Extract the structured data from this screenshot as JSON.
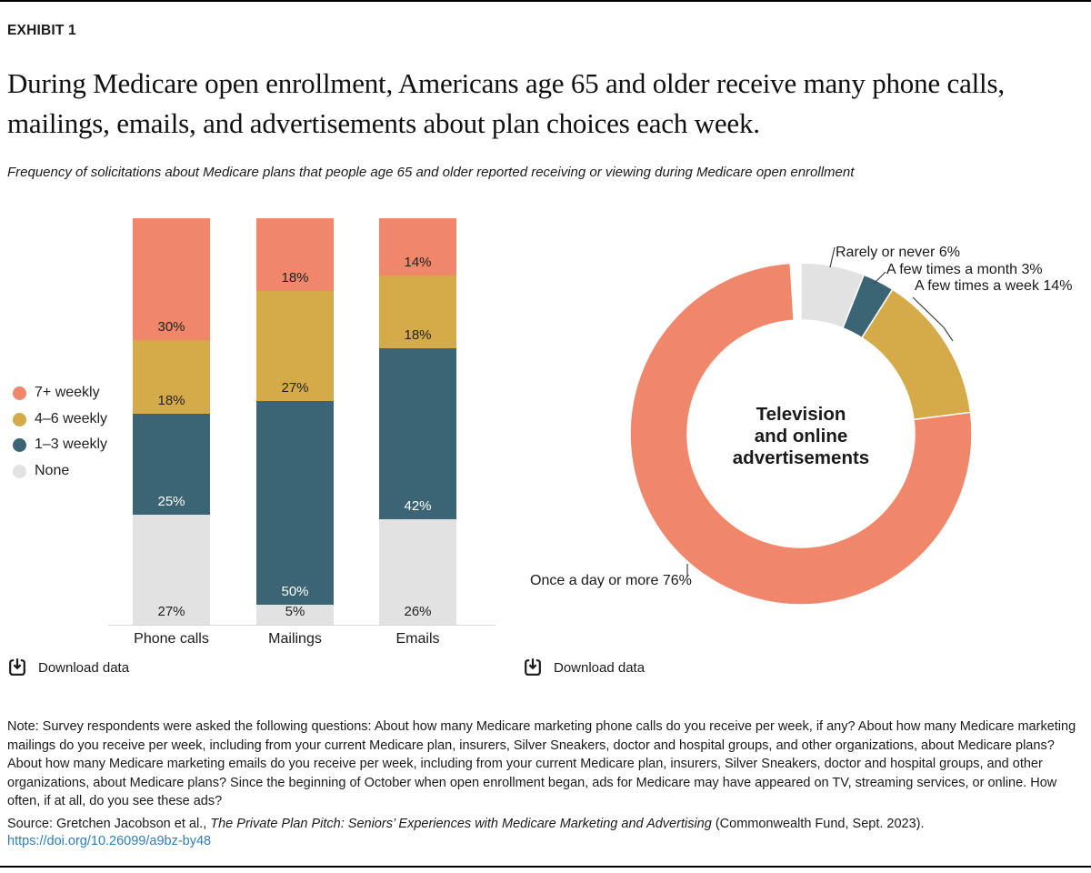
{
  "page": {
    "exhibit_label": "EXHIBIT 1",
    "title": "During Medicare open enrollment, Americans age 65 and older receive many phone calls, mailings, emails, and advertisements about plan choices each week.",
    "subtitle": "Frequency of solicitations about Medicare plans that people age 65 and older reported receiving or viewing during Medicare open enrollment"
  },
  "colors": {
    "orange": "#F0876A",
    "gold": "#D5AB49",
    "teal": "#3B6474",
    "gray": "#E2E2E2",
    "text": "#1A1A1A",
    "bar_label_dark": "#222222",
    "bar_label_light": "#FFFFFF",
    "axis": "#D8D8D8",
    "leader": "#444444",
    "link": "#2E7DBF"
  },
  "chart_data": [
    {
      "type": "bar",
      "subtype": "stacked-percent",
      "categories": [
        "Phone calls",
        "Mailings",
        "Emails"
      ],
      "series": [
        {
          "name": "None",
          "color_key": "gray",
          "values": [
            27,
            5,
            26
          ]
        },
        {
          "name": "1–3 weekly",
          "color_key": "teal",
          "values": [
            25,
            50,
            42
          ]
        },
        {
          "name": "4–6 weekly",
          "color_key": "gold",
          "values": [
            18,
            27,
            18
          ]
        },
        {
          "name": "7+ weekly",
          "color_key": "orange",
          "values": [
            30,
            18,
            14
          ]
        }
      ],
      "stack_order": "bottom-to-top",
      "value_suffix": "%",
      "ylim": [
        0,
        100
      ],
      "grid": false,
      "legend": [
        {
          "label": "7+ weekly",
          "color_key": "orange"
        },
        {
          "label": "4–6 weekly",
          "color_key": "gold"
        },
        {
          "label": "1–3 weekly",
          "color_key": "teal"
        },
        {
          "label": "None",
          "color_key": "gray"
        }
      ],
      "legend_position": "left"
    },
    {
      "type": "pie",
      "subtype": "donut",
      "center_label": "Television and online advertisements",
      "center_label_lines": [
        "Television",
        "and online",
        "advertisements"
      ],
      "slices": [
        {
          "label": "Rarely or never",
          "value": 6,
          "color_key": "gray"
        },
        {
          "label": "A few times a month",
          "value": 3,
          "color_key": "teal"
        },
        {
          "label": "A few times a week",
          "value": 14,
          "color_key": "gold"
        },
        {
          "label": "Once a day or more",
          "value": 76,
          "color_key": "orange"
        }
      ],
      "value_suffix": "%",
      "start_angle_deg": 0,
      "direction": "clockwise"
    }
  ],
  "downloads": {
    "label": "Download data"
  },
  "note": {
    "text": "Note: Survey respondents were asked the following questions: About how many Medicare marketing phone calls do you receive per week, if any? About how many Medicare marketing mailings do you receive per week, including from your current Medicare plan, insurers, Silver Sneakers, doctor and hospital groups, and other organizations, about Medicare plans? About how many Medicare marketing emails do you receive per week, including from your current Medicare plan, insurers, Silver Sneakers, doctor and hospital groups, and other organizations, about Medicare plans? Since the beginning of October when open enrollment began, ads for Medicare may have appeared on TV, streaming services, or online. How often, if at all, do you see these ads?"
  },
  "source": {
    "prefix": "Source: Gretchen Jacobson et al., ",
    "title_italic": "The Private Plan Pitch: Seniors’ Experiences with Medicare Marketing and Advertising",
    "suffix": " (Commonwealth Fund, Sept. 2023).",
    "link": "https://doi.org/10.26099/a9bz-by48"
  }
}
